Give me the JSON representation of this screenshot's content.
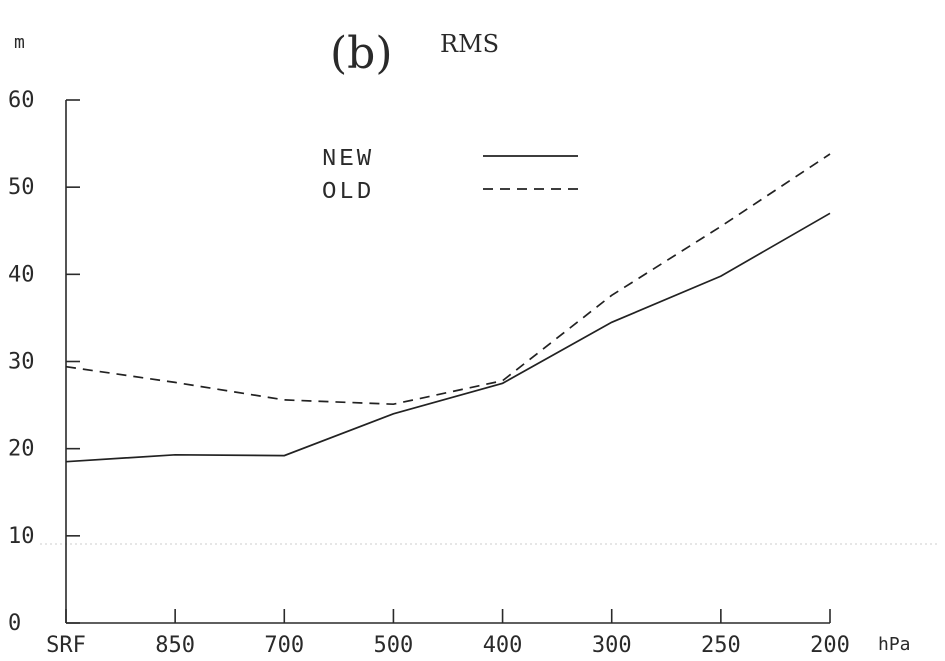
{
  "chart_data": {
    "type": "line",
    "panel_label": "(b)",
    "title": "RMS",
    "ylabel": "m",
    "xlabel": "hPa",
    "categories": [
      "SRF",
      "850",
      "700",
      "500",
      "400",
      "300",
      "250",
      "200"
    ],
    "ylim": [
      0,
      60
    ],
    "yticks": [
      "0",
      "10",
      "20",
      "30",
      "40",
      "50",
      "60"
    ],
    "grid": false,
    "legend_position": "top-center",
    "series": [
      {
        "name": "NEW",
        "style": "solid",
        "values": [
          18.5,
          19.3,
          19.2,
          24.0,
          27.5,
          34.5,
          39.8,
          47.0
        ]
      },
      {
        "name": "OLD",
        "style": "dashed",
        "values": [
          29.4,
          27.6,
          25.6,
          25.1,
          27.8,
          37.6,
          45.5,
          53.8
        ]
      }
    ]
  }
}
